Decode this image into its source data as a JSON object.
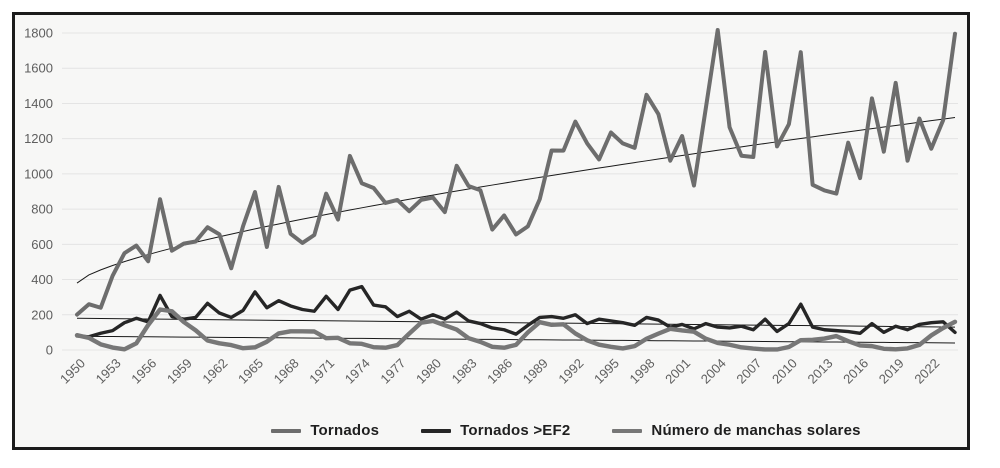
{
  "style": {
    "frame_border": "#1b1b1b",
    "panel_bg": "#f7f7f6",
    "grid_color": "#e4e4e4",
    "tick_color": "#5e5e5e",
    "legend_text_color": "#1f1f1f",
    "trend_color": "#1a1a1a"
  },
  "chart_data": {
    "type": "line",
    "grid": "horizontal",
    "legend_position": "bottom-center",
    "ylim": [
      0,
      1800
    ],
    "yticks": [
      0,
      200,
      400,
      600,
      800,
      1000,
      1200,
      1400,
      1600,
      1800
    ],
    "xticks": [
      1950,
      1953,
      1956,
      1959,
      1962,
      1965,
      1968,
      1971,
      1974,
      1977,
      1980,
      1983,
      1986,
      1989,
      1992,
      1995,
      1998,
      2001,
      2004,
      2007,
      2010,
      2013,
      2016,
      2019,
      2022
    ],
    "years": [
      1950,
      1951,
      1952,
      1953,
      1954,
      1955,
      1956,
      1957,
      1958,
      1959,
      1960,
      1961,
      1962,
      1963,
      1964,
      1965,
      1966,
      1967,
      1968,
      1969,
      1970,
      1971,
      1972,
      1973,
      1974,
      1975,
      1976,
      1977,
      1978,
      1979,
      1980,
      1981,
      1982,
      1983,
      1984,
      1985,
      1986,
      1987,
      1988,
      1989,
      1990,
      1991,
      1992,
      1993,
      1994,
      1995,
      1996,
      1997,
      1998,
      1999,
      2000,
      2001,
      2002,
      2003,
      2004,
      2005,
      2006,
      2007,
      2008,
      2009,
      2010,
      2011,
      2012,
      2013,
      2014,
      2015,
      2016,
      2017,
      2018,
      2019,
      2020,
      2021,
      2022,
      2023,
      2024
    ],
    "series": [
      {
        "id": "tornados",
        "name": "Tornados",
        "color": "#6d6d6d",
        "width": 4,
        "values": [
          201,
          260,
          240,
          421,
          550,
          593,
          504,
          856,
          564,
          604,
          616,
          697,
          657,
          464,
          704,
          897,
          585,
          926,
          660,
          608,
          653,
          888,
          741,
          1102,
          947,
          920,
          835,
          852,
          788,
          852,
          866,
          783,
          1046,
          931,
          907,
          684,
          764,
          656,
          702,
          856,
          1133,
          1132,
          1297,
          1173,
          1082,
          1235,
          1173,
          1148,
          1449,
          1340,
          1075,
          1215,
          934,
          1374,
          1817,
          1265,
          1103,
          1096,
          1692,
          1156,
          1282,
          1691,
          938,
          906,
          888,
          1177,
          976,
          1429,
          1126,
          1517,
          1075,
          1314,
          1143,
          1305,
          1796
        ]
      },
      {
        "id": "tornados-ef2",
        "name": "Tornados >EF2",
        "color": "#262626",
        "width": 3.4,
        "values": [
          80,
          75,
          95,
          110,
          155,
          180,
          160,
          310,
          190,
          175,
          185,
          265,
          210,
          185,
          225,
          330,
          240,
          280,
          250,
          230,
          220,
          305,
          230,
          340,
          360,
          255,
          245,
          190,
          220,
          175,
          200,
          175,
          215,
          165,
          150,
          125,
          115,
          90,
          140,
          185,
          190,
          180,
          200,
          150,
          175,
          165,
          155,
          140,
          185,
          170,
          130,
          145,
          120,
          150,
          130,
          125,
          135,
          115,
          175,
          105,
          150,
          260,
          130,
          115,
          110,
          105,
          95,
          150,
          100,
          135,
          115,
          145,
          155,
          160,
          100
        ]
      },
      {
        "id": "manchas-solares",
        "name": "Número de manchas solares",
        "color": "#777777",
        "width": 4.4,
        "values": [
          84,
          69,
          32,
          14,
          4,
          38,
          142,
          230,
          220,
          159,
          112,
          54,
          38,
          28,
          10,
          15,
          47,
          94,
          106,
          106,
          105,
          67,
          69,
          38,
          35,
          16,
          13,
          28,
          93,
          155,
          165,
          140,
          116,
          67,
          46,
          18,
          13,
          29,
          100,
          158,
          143,
          146,
          94,
          55,
          30,
          18,
          9,
          22,
          64,
          93,
          120,
          111,
          104,
          64,
          40,
          30,
          15,
          8,
          3,
          3,
          17,
          56,
          58,
          65,
          79,
          50,
          26,
          22,
          7,
          4,
          9,
          29,
          83,
          125,
          160
        ]
      }
    ],
    "trendlines": [
      {
        "id": "tornados-trendline",
        "series": "Tornados",
        "shape": "power",
        "exponent": 0.7,
        "start": 380,
        "end": 1320
      },
      {
        "id": "tornados-ef2-trendline",
        "series": "Tornados >EF2",
        "shape": "linear",
        "start": 180,
        "end": 130
      },
      {
        "id": "manchas-solares-trendline",
        "series": "Número de manchas solares",
        "shape": "linear",
        "start": 78,
        "end": 40
      }
    ]
  }
}
